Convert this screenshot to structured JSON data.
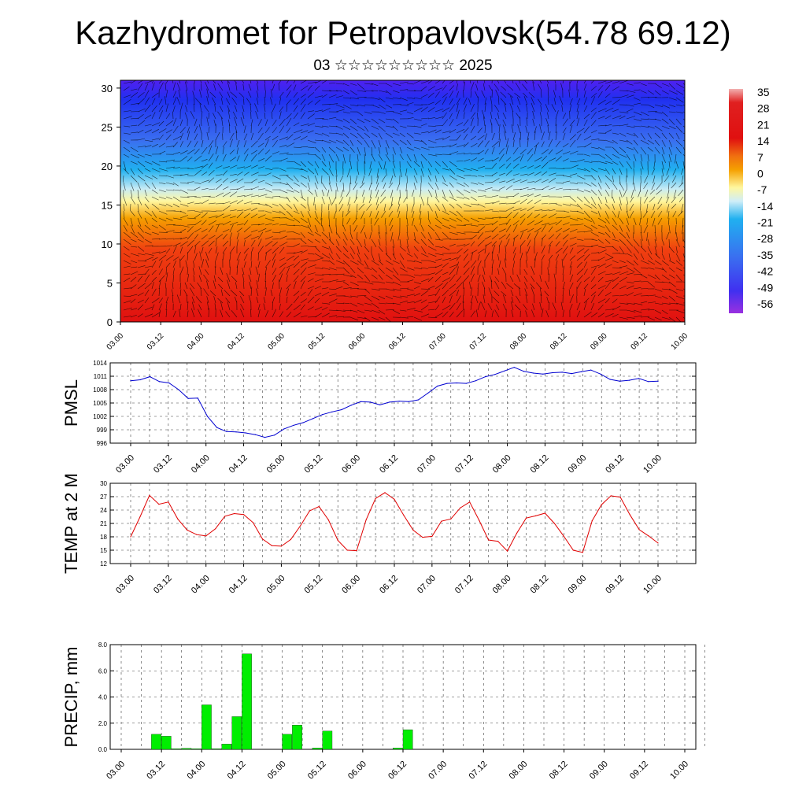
{
  "header": {
    "title": "Kazhydromet for Petropavlovsk(54.78 69.12)",
    "subtitle": "03 ☆☆☆☆☆☆☆☆☆ 2025"
  },
  "chart_data": [
    {
      "type": "heatmap",
      "name": "temperature-wind-cross-section",
      "x_ticks": [
        "03.00",
        "03.12",
        "04.00",
        "04.12",
        "05.00",
        "05.12",
        "06.00",
        "06.12",
        "07.00",
        "07.12",
        "08.00",
        "08.12",
        "09.00",
        "09.12",
        "10.00"
      ],
      "y_ticks": [
        0,
        5,
        10,
        15,
        20,
        25,
        30
      ],
      "ylim": [
        0,
        31
      ],
      "overlay": "wind streamlines",
      "colorbar": {
        "labels": [
          "35",
          "28",
          "21",
          "14",
          "7",
          "0",
          "-7",
          "-14",
          "-21",
          "-28",
          "-35",
          "-42",
          "-49",
          "-56"
        ],
        "range": [
          -60,
          38
        ]
      },
      "colors": {
        "hot": "#e01010",
        "warm": "#f5a000",
        "neutral": "#fff7a0",
        "cold": "#20b0f0",
        "cold2": "#3a6ff0",
        "coldest": "#5020f0"
      }
    },
    {
      "type": "line",
      "name": "pmsl",
      "ylabel": "PMSL",
      "y_ticks": [
        996,
        999,
        1002,
        1005,
        1008,
        1011,
        1014
      ],
      "ylim": [
        996,
        1014
      ],
      "x_ticks": [
        "03.00",
        "03.12",
        "04.00",
        "04.12",
        "05.00",
        "05.12",
        "06.00",
        "06.12",
        "07.00",
        "07.12",
        "08.00",
        "08.12",
        "09.00",
        "09.12",
        "10.00"
      ],
      "values": [
        1010.0,
        1010.2,
        1010.9,
        1009.8,
        1009.5,
        1008.0,
        1006.0,
        1006.1,
        1002.0,
        999.5,
        998.6,
        998.5,
        998.3,
        997.9,
        997.3,
        997.8,
        999.2,
        1000.0,
        1000.6,
        1001.5,
        1002.4,
        1003.0,
        1003.5,
        1004.5,
        1005.3,
        1005.2,
        1004.6,
        1005.2,
        1005.4,
        1005.3,
        1005.7,
        1007.2,
        1008.8,
        1009.4,
        1009.5,
        1009.4,
        1010.0,
        1010.9,
        1011.4,
        1012.2,
        1013.0,
        1012.1,
        1011.7,
        1011.5,
        1011.8,
        1011.9,
        1011.6,
        1012.0,
        1012.4,
        1011.5,
        1010.3,
        1009.9,
        1010.1,
        1010.5,
        1009.8,
        1009.9
      ],
      "color": "#0000d0"
    },
    {
      "type": "line",
      "name": "temp-2m",
      "ylabel": "TEMP at 2 M",
      "y_ticks": [
        12,
        15,
        18,
        21,
        24,
        27,
        30
      ],
      "ylim": [
        12,
        30
      ],
      "x_ticks": [
        "03.00",
        "03.12",
        "04.00",
        "04.12",
        "05.00",
        "05.12",
        "06.00",
        "06.12",
        "07.00",
        "07.12",
        "08.00",
        "08.12",
        "09.00",
        "09.12",
        "10.00"
      ],
      "values": [
        18.0,
        22.5,
        27.3,
        25.3,
        25.8,
        22.0,
        19.5,
        18.5,
        18.2,
        19.8,
        22.6,
        23.2,
        23.0,
        21.2,
        17.5,
        16.0,
        15.9,
        17.4,
        20.4,
        23.8,
        24.8,
        21.8,
        17.2,
        15.0,
        14.9,
        21.8,
        26.6,
        27.9,
        26.4,
        22.8,
        19.5,
        17.9,
        18.1,
        21.5,
        22.0,
        24.5,
        25.8,
        21.7,
        17.3,
        17.0,
        14.8,
        18.8,
        22.2,
        22.7,
        23.3,
        21.0,
        18.1,
        15.0,
        14.5,
        21.6,
        25.2,
        27.2,
        26.9,
        23.0,
        19.6,
        18.2,
        16.6
      ],
      "color": "#e00000"
    },
    {
      "type": "bar",
      "name": "precip",
      "ylabel": "PRECIP, mm",
      "y_ticks": [
        "0.0",
        "2.0",
        "4.0",
        "6.0",
        "8.0"
      ],
      "ylim": [
        0,
        8
      ],
      "x_ticks": [
        "03.00",
        "03.12",
        "04.00",
        "04.12",
        "05.00",
        "05.12",
        "06.00",
        "06.12",
        "07.00",
        "07.12",
        "08.00",
        "08.12",
        "09.00",
        "09.12",
        "10.00"
      ],
      "values": [
        0,
        0,
        0,
        1.15,
        1.0,
        0.05,
        0.08,
        0.05,
        3.4,
        0.05,
        0.4,
        2.5,
        7.3,
        0,
        0,
        0,
        1.15,
        1.85,
        0,
        0.1,
        1.4,
        0,
        0,
        0,
        0,
        0,
        0,
        0.1,
        1.5,
        0,
        0,
        0,
        0,
        0,
        0,
        0,
        0,
        0,
        0,
        0,
        0,
        0,
        0,
        0,
        0,
        0,
        0,
        0,
        0,
        0,
        0,
        0,
        0,
        0,
        0,
        0,
        0
      ],
      "color": "#00ee00"
    }
  ]
}
